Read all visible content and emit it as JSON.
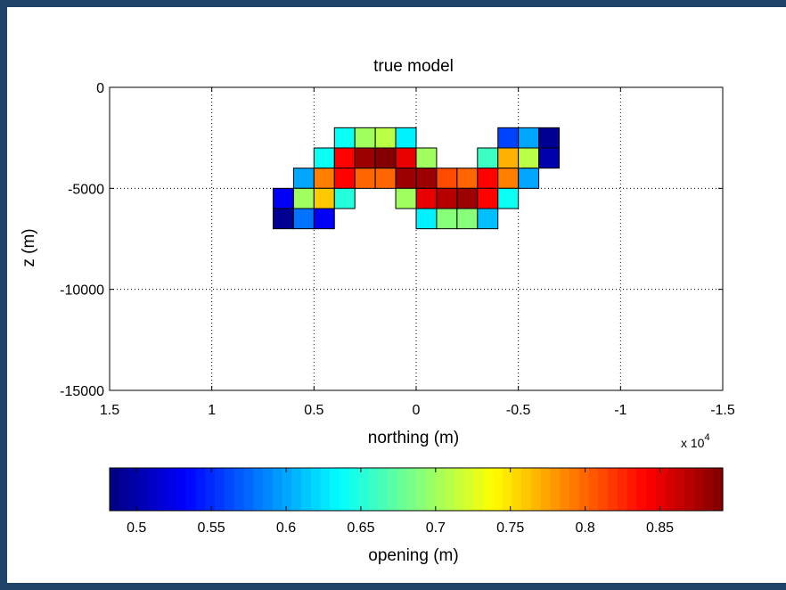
{
  "chart_data": {
    "type": "heatmap",
    "title": "true model",
    "xlabel": "northing (m)",
    "ylabel": "z (m)",
    "x_multiplier": "x 10",
    "x_multiplier_exp": "4",
    "xlim": [
      15000,
      -15000
    ],
    "ylim": [
      -15000,
      0
    ],
    "x_ticks": [
      15000,
      10000,
      5000,
      0,
      -5000,
      -10000,
      -15000
    ],
    "x_tick_labels": [
      "1.5",
      "1",
      "0.5",
      "0",
      "-0.5",
      "-1",
      "-1.5"
    ],
    "y_ticks": [
      0,
      -5000,
      -10000,
      -15000
    ],
    "y_tick_labels": [
      "0",
      "-5000",
      "-10000",
      "-15000"
    ],
    "grid": true,
    "grid_style": "dotted",
    "cell_size": 1000,
    "cells_note_units": "x = northing (m), z = depth (m), value = opening (m)",
    "cells": [
      {
        "x": 3500,
        "z": -2500,
        "v": 0.64
      },
      {
        "x": 2500,
        "z": -2500,
        "v": 0.7
      },
      {
        "x": 1500,
        "z": -2500,
        "v": 0.71
      },
      {
        "x": 500,
        "z": -2500,
        "v": 0.63
      },
      {
        "x": -4500,
        "z": -2500,
        "v": 0.56
      },
      {
        "x": -5500,
        "z": -2500,
        "v": 0.6
      },
      {
        "x": -6500,
        "z": -2500,
        "v": 0.49
      },
      {
        "x": 4500,
        "z": -3500,
        "v": 0.64
      },
      {
        "x": 3500,
        "z": -3500,
        "v": 0.84
      },
      {
        "x": 2500,
        "z": -3500,
        "v": 0.88
      },
      {
        "x": 1500,
        "z": -3500,
        "v": 0.89
      },
      {
        "x": 500,
        "z": -3500,
        "v": 0.85
      },
      {
        "x": -500,
        "z": -3500,
        "v": 0.7
      },
      {
        "x": -3500,
        "z": -3500,
        "v": 0.66
      },
      {
        "x": -4500,
        "z": -3500,
        "v": 0.77
      },
      {
        "x": -5500,
        "z": -3500,
        "v": 0.71
      },
      {
        "x": -6500,
        "z": -3500,
        "v": 0.5
      },
      {
        "x": 5500,
        "z": -4500,
        "v": 0.6
      },
      {
        "x": 4500,
        "z": -4500,
        "v": 0.79
      },
      {
        "x": 3500,
        "z": -4500,
        "v": 0.84
      },
      {
        "x": 2500,
        "z": -4500,
        "v": 0.8
      },
      {
        "x": 1500,
        "z": -4500,
        "v": 0.8
      },
      {
        "x": 500,
        "z": -4500,
        "v": 0.88
      },
      {
        "x": -500,
        "z": -4500,
        "v": 0.88
      },
      {
        "x": -1500,
        "z": -4500,
        "v": 0.81
      },
      {
        "x": -2500,
        "z": -4500,
        "v": 0.8
      },
      {
        "x": -3500,
        "z": -4500,
        "v": 0.84
      },
      {
        "x": -4500,
        "z": -4500,
        "v": 0.79
      },
      {
        "x": -5500,
        "z": -4500,
        "v": 0.6
      },
      {
        "x": 6500,
        "z": -5500,
        "v": 0.53
      },
      {
        "x": 5500,
        "z": -5500,
        "v": 0.7
      },
      {
        "x": 4500,
        "z": -5500,
        "v": 0.76
      },
      {
        "x": 3500,
        "z": -5500,
        "v": 0.65
      },
      {
        "x": 0,
        "z": -5500,
        "v": 0.7,
        "w": 1000,
        "xstart": 1000
      },
      {
        "x": -500,
        "z": -5500,
        "v": 0.85
      },
      {
        "x": -1500,
        "z": -5500,
        "v": 0.87
      },
      {
        "x": -2500,
        "z": -5500,
        "v": 0.88
      },
      {
        "x": -3500,
        "z": -5500,
        "v": 0.84
      },
      {
        "x": -4500,
        "z": -5500,
        "v": 0.64
      },
      {
        "x": 6500,
        "z": -6500,
        "v": 0.49
      },
      {
        "x": 5500,
        "z": -6500,
        "v": 0.58
      },
      {
        "x": 4500,
        "z": -6500,
        "v": 0.53
      },
      {
        "x": -500,
        "z": -6500,
        "v": 0.63
      },
      {
        "x": -1500,
        "z": -6500,
        "v": 0.69
      },
      {
        "x": -2500,
        "z": -6500,
        "v": 0.69
      },
      {
        "x": -3500,
        "z": -6500,
        "v": 0.61
      }
    ],
    "colorbar": {
      "label": "opening (m)",
      "vmin": 0.482,
      "vmax": 0.892,
      "ticks": [
        0.5,
        0.55,
        0.6,
        0.65,
        0.7,
        0.75,
        0.8,
        0.85
      ],
      "tick_labels": [
        "0.5",
        "0.55",
        "0.6",
        "0.65",
        "0.7",
        "0.75",
        "0.8",
        "0.85"
      ],
      "colormap": "jet"
    }
  }
}
